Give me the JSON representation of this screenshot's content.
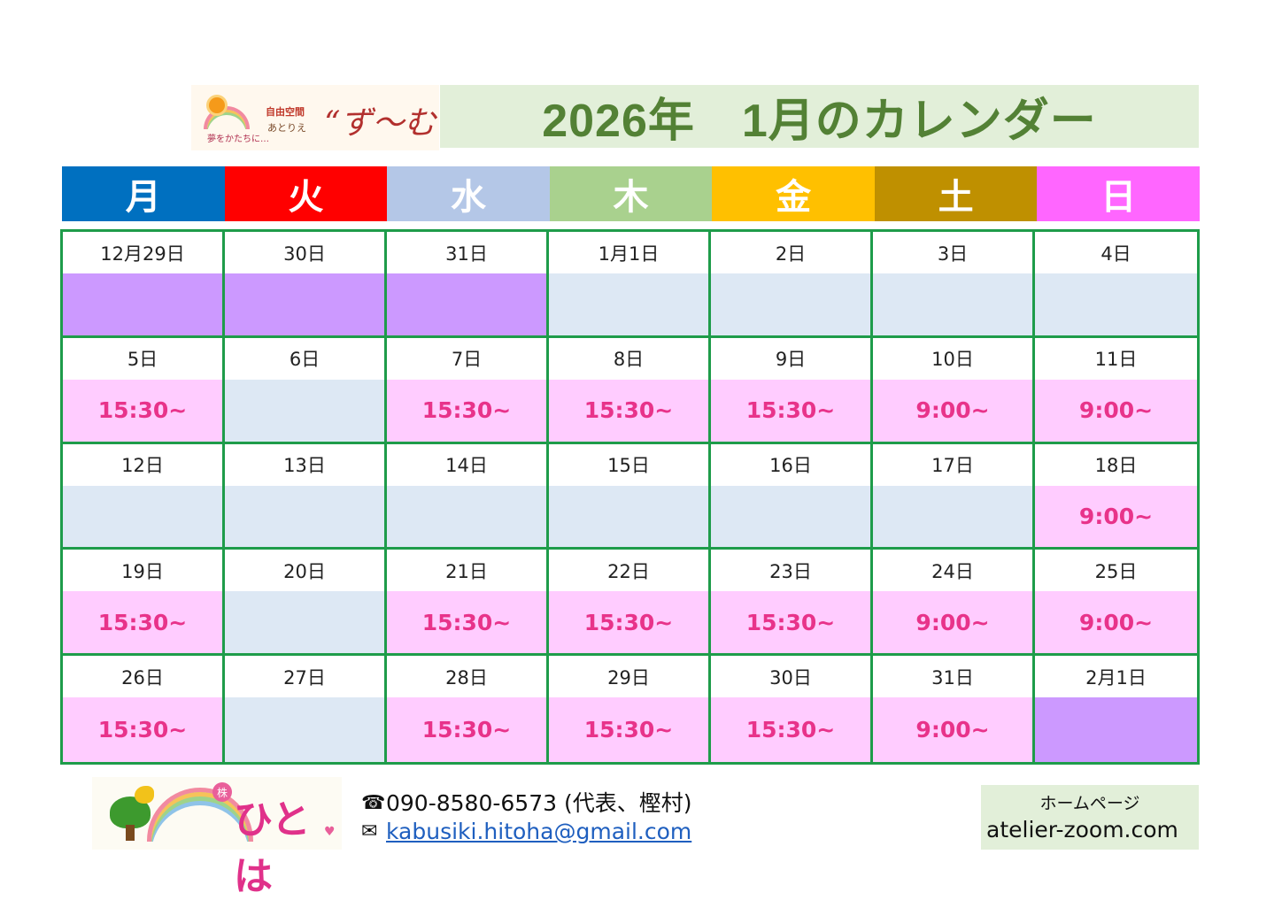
{
  "header": {
    "logo_line1": "自由空間",
    "logo_line2": "あとりえ",
    "logo_line3": "夢をかたちに…",
    "logo_brand": "“ず～む„",
    "title": "2026年　1月のカレンダー"
  },
  "weekdays": [
    {
      "label": "月",
      "color": "#0070c0"
    },
    {
      "label": "火",
      "color": "#ff0000"
    },
    {
      "label": "水",
      "color": "#b4c7e7"
    },
    {
      "label": "木",
      "color": "#a9d18e"
    },
    {
      "label": "金",
      "color": "#ffc000"
    },
    {
      "label": "土",
      "color": "#bf9000"
    },
    {
      "label": "日",
      "color": "#ff66ff"
    }
  ],
  "colors": {
    "grid_border": "#1e9c4a",
    "time_text": "#e8338a",
    "closed": "#cc99ff",
    "none": "#dde8f4",
    "open": "#ffccff"
  },
  "weeks": [
    [
      {
        "date": "12月29日",
        "time": "",
        "kind": "purple"
      },
      {
        "date": "30日",
        "time": "",
        "kind": "purple"
      },
      {
        "date": "31日",
        "time": "",
        "kind": "purple"
      },
      {
        "date": "1月1日",
        "time": "",
        "kind": "blue"
      },
      {
        "date": "2日",
        "time": "",
        "kind": "blue"
      },
      {
        "date": "3日",
        "time": "",
        "kind": "blue"
      },
      {
        "date": "4日",
        "time": "",
        "kind": "blue"
      }
    ],
    [
      {
        "date": "5日",
        "time": "15:30~",
        "kind": "pink"
      },
      {
        "date": "6日",
        "time": "",
        "kind": "blue"
      },
      {
        "date": "7日",
        "time": "15:30~",
        "kind": "pink"
      },
      {
        "date": "8日",
        "time": "15:30~",
        "kind": "pink"
      },
      {
        "date": "9日",
        "time": "15:30~",
        "kind": "pink"
      },
      {
        "date": "10日",
        "time": "9:00~",
        "kind": "pink"
      },
      {
        "date": "11日",
        "time": "9:00~",
        "kind": "pink"
      }
    ],
    [
      {
        "date": "12日",
        "time": "",
        "kind": "blue"
      },
      {
        "date": "13日",
        "time": "",
        "kind": "blue"
      },
      {
        "date": "14日",
        "time": "",
        "kind": "blue"
      },
      {
        "date": "15日",
        "time": "",
        "kind": "blue"
      },
      {
        "date": "16日",
        "time": "",
        "kind": "blue"
      },
      {
        "date": "17日",
        "time": "",
        "kind": "blue"
      },
      {
        "date": "18日",
        "time": "9:00~",
        "kind": "pink"
      }
    ],
    [
      {
        "date": "19日",
        "time": "15:30~",
        "kind": "pink"
      },
      {
        "date": "20日",
        "time": "",
        "kind": "blue"
      },
      {
        "date": "21日",
        "time": "15:30~",
        "kind": "pink"
      },
      {
        "date": "22日",
        "time": "15:30~",
        "kind": "pink"
      },
      {
        "date": "23日",
        "time": "15:30~",
        "kind": "pink"
      },
      {
        "date": "24日",
        "time": "9:00~",
        "kind": "pink"
      },
      {
        "date": "25日",
        "time": "9:00~",
        "kind": "pink"
      }
    ],
    [
      {
        "date": "26日",
        "time": "15:30~",
        "kind": "pink"
      },
      {
        "date": "27日",
        "time": "",
        "kind": "blue"
      },
      {
        "date": "28日",
        "time": "15:30~",
        "kind": "pink"
      },
      {
        "date": "29日",
        "time": "15:30~",
        "kind": "pink"
      },
      {
        "date": "30日",
        "time": "15:30~",
        "kind": "pink"
      },
      {
        "date": "31日",
        "time": "9:00~",
        "kind": "pink"
      },
      {
        "date": "2月1日",
        "time": "",
        "kind": "purple"
      }
    ]
  ],
  "footer": {
    "logo_mark": "株",
    "logo_text": "ひとは",
    "phone_icon": "phone-icon",
    "phone": "090-8580-6573 (代表、樫村)",
    "mail_icon": "mail-icon",
    "email": "kabusiki.hitoha@gmail.com",
    "homepage_label": "ホームページ",
    "homepage_url": "atelier-zoom.com"
  }
}
